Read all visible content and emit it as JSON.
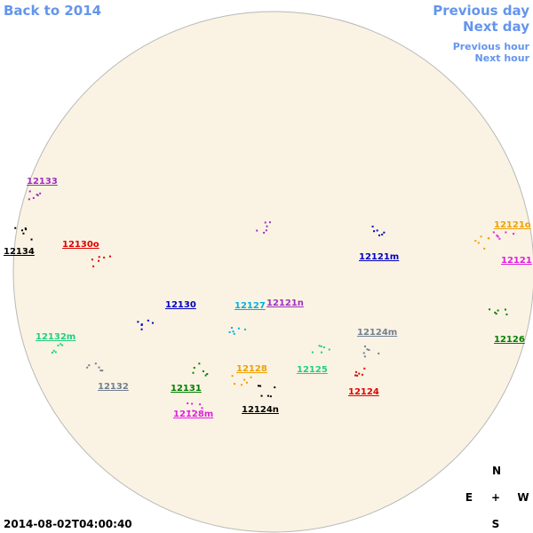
{
  "nav": {
    "back": "Back to 2014",
    "previous_day": "Previous day",
    "next_day": "Next day",
    "previous_hour": "Previous hour",
    "next_hour": "Next hour"
  },
  "regions": [
    {
      "label": "12133",
      "color": "#a030c0"
    },
    {
      "label": "12134",
      "color": "#000000"
    },
    {
      "label": "12130o",
      "color": "#e00000"
    },
    {
      "label": "12132m",
      "color": "#20d080"
    },
    {
      "label": "12132",
      "color": "#708090"
    },
    {
      "label": "12130",
      "color": "#0000c0"
    },
    {
      "label": "12131",
      "color": "#008000"
    },
    {
      "label": "12128m",
      "color": "#e020e0"
    },
    {
      "label": "12128",
      "color": "#f0a000"
    },
    {
      "label": "12124n",
      "color": "#000000"
    },
    {
      "label": "12127",
      "color": "#00b0e0"
    },
    {
      "label": "12121n",
      "color": "#a030c0"
    },
    {
      "label": "12124m",
      "color": "#708090"
    },
    {
      "label": "12125",
      "color": "#20d080"
    },
    {
      "label": "12124",
      "color": "#e00000"
    },
    {
      "label": "12121m",
      "color": "#0000c0"
    },
    {
      "label": "12121o",
      "color": "#f0a000"
    },
    {
      "label": "12121",
      "color": "#e020e0"
    },
    {
      "label": "12126",
      "color": "#008000"
    }
  ],
  "compass": {
    "north": "N",
    "east": "E",
    "center": "+",
    "west": "W",
    "south": "S"
  },
  "timestamp": "2014-08-02T04:00:40"
}
